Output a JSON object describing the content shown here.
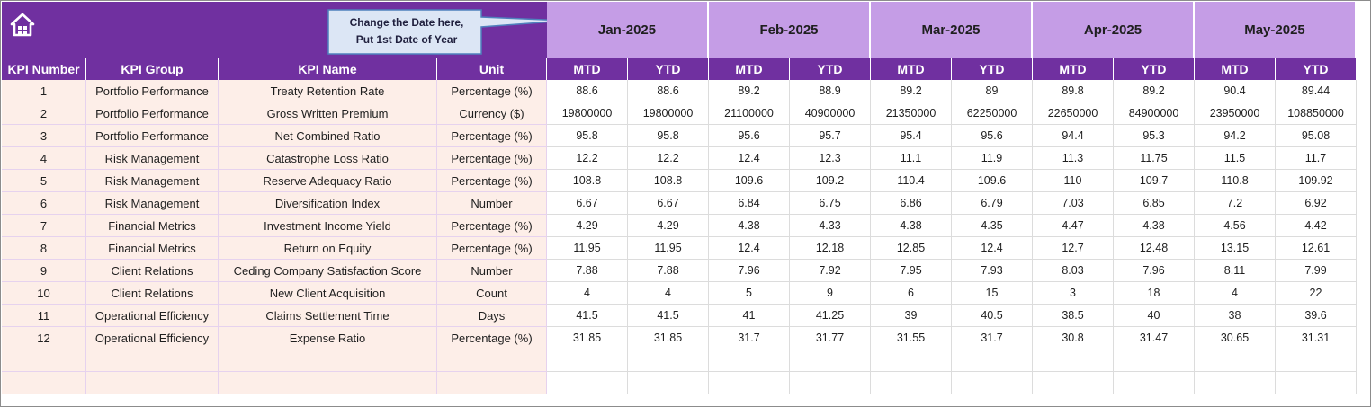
{
  "callout": {
    "line1": "Change the Date here,",
    "line2": "Put 1st Date of Year"
  },
  "icons": {
    "home": "home-icon"
  },
  "colors": {
    "header_purple": "#7030a0",
    "month_lavender": "#c59de6",
    "left_peach": "#fdeee8"
  },
  "months": [
    "Jan-2025",
    "Feb-2025",
    "Mar-2025",
    "Apr-2025",
    "May-2025"
  ],
  "columns": {
    "kpi_number": "KPI Number",
    "kpi_group": "KPI Group",
    "kpi_name": "KPI Name",
    "unit": "Unit",
    "mtd": "MTD",
    "ytd": "YTD"
  },
  "rows": [
    {
      "num": "1",
      "group": "Portfolio Performance",
      "name": "Treaty Retention Rate",
      "unit": "Percentage (%)",
      "vals": [
        "88.6",
        "88.6",
        "89.2",
        "88.9",
        "89.2",
        "89",
        "89.8",
        "89.2",
        "90.4",
        "89.44"
      ]
    },
    {
      "num": "2",
      "group": "Portfolio Performance",
      "name": "Gross Written Premium",
      "unit": "Currency ($)",
      "vals": [
        "19800000",
        "19800000",
        "21100000",
        "40900000",
        "21350000",
        "62250000",
        "22650000",
        "84900000",
        "23950000",
        "108850000"
      ]
    },
    {
      "num": "3",
      "group": "Portfolio Performance",
      "name": "Net Combined Ratio",
      "unit": "Percentage (%)",
      "vals": [
        "95.8",
        "95.8",
        "95.6",
        "95.7",
        "95.4",
        "95.6",
        "94.4",
        "95.3",
        "94.2",
        "95.08"
      ]
    },
    {
      "num": "4",
      "group": "Risk Management",
      "name": "Catastrophe Loss Ratio",
      "unit": "Percentage (%)",
      "vals": [
        "12.2",
        "12.2",
        "12.4",
        "12.3",
        "11.1",
        "11.9",
        "11.3",
        "11.75",
        "11.5",
        "11.7"
      ]
    },
    {
      "num": "5",
      "group": "Risk Management",
      "name": "Reserve Adequacy Ratio",
      "unit": "Percentage (%)",
      "vals": [
        "108.8",
        "108.8",
        "109.6",
        "109.2",
        "110.4",
        "109.6",
        "110",
        "109.7",
        "110.8",
        "109.92"
      ]
    },
    {
      "num": "6",
      "group": "Risk Management",
      "name": "Diversification Index",
      "unit": "Number",
      "vals": [
        "6.67",
        "6.67",
        "6.84",
        "6.75",
        "6.86",
        "6.79",
        "7.03",
        "6.85",
        "7.2",
        "6.92"
      ]
    },
    {
      "num": "7",
      "group": "Financial Metrics",
      "name": "Investment Income Yield",
      "unit": "Percentage (%)",
      "vals": [
        "4.29",
        "4.29",
        "4.38",
        "4.33",
        "4.38",
        "4.35",
        "4.47",
        "4.38",
        "4.56",
        "4.42"
      ]
    },
    {
      "num": "8",
      "group": "Financial Metrics",
      "name": "Return on Equity",
      "unit": "Percentage (%)",
      "vals": [
        "11.95",
        "11.95",
        "12.4",
        "12.18",
        "12.85",
        "12.4",
        "12.7",
        "12.48",
        "13.15",
        "12.61"
      ]
    },
    {
      "num": "9",
      "group": "Client Relations",
      "name": "Ceding Company Satisfaction Score",
      "unit": "Number",
      "vals": [
        "7.88",
        "7.88",
        "7.96",
        "7.92",
        "7.95",
        "7.93",
        "8.03",
        "7.96",
        "8.11",
        "7.99"
      ]
    },
    {
      "num": "10",
      "group": "Client Relations",
      "name": "New Client Acquisition",
      "unit": "Count",
      "vals": [
        "4",
        "4",
        "5",
        "9",
        "6",
        "15",
        "3",
        "18",
        "4",
        "22"
      ]
    },
    {
      "num": "11",
      "group": "Operational Efficiency",
      "name": "Claims Settlement Time",
      "unit": "Days",
      "vals": [
        "41.5",
        "41.5",
        "41",
        "41.25",
        "39",
        "40.5",
        "38.5",
        "40",
        "38",
        "39.6"
      ]
    },
    {
      "num": "12",
      "group": "Operational Efficiency",
      "name": "Expense Ratio",
      "unit": "Percentage (%)",
      "vals": [
        "31.85",
        "31.85",
        "31.7",
        "31.77",
        "31.55",
        "31.7",
        "30.8",
        "31.47",
        "30.65",
        "31.31"
      ]
    }
  ]
}
